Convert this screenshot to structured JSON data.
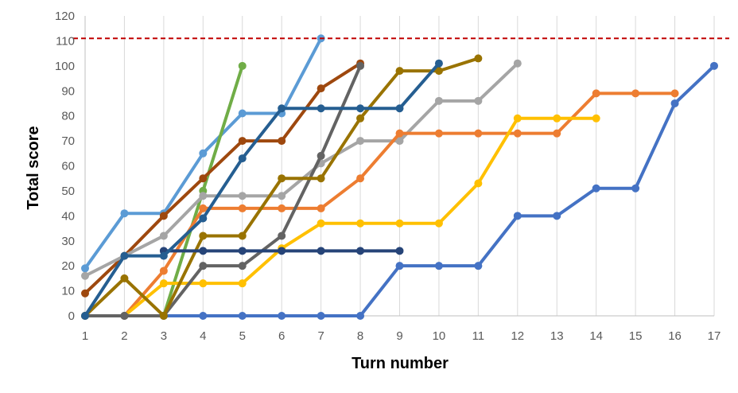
{
  "chart_data": {
    "type": "line",
    "title": "",
    "xlabel": "Turn number",
    "ylabel": "Total score",
    "xlim": [
      1,
      17
    ],
    "ylim": [
      0,
      120
    ],
    "x_ticks": [
      1,
      2,
      3,
      4,
      5,
      6,
      7,
      8,
      9,
      10,
      11,
      12,
      13,
      14,
      15,
      16,
      17
    ],
    "y_ticks": [
      0,
      10,
      20,
      30,
      40,
      50,
      60,
      70,
      80,
      90,
      100,
      110,
      120
    ],
    "grid": "vertical",
    "legend": "none",
    "reference_line": {
      "y": 111,
      "color": "#C00000",
      "style": "dashed"
    },
    "series": [
      {
        "color": "#5B9BD5",
        "x": [
          1,
          2,
          3,
          4,
          5,
          6,
          7
        ],
        "values": [
          19,
          41,
          41,
          65,
          81,
          81,
          111
        ]
      },
      {
        "color": "#70AD47",
        "x": [
          3,
          4,
          5
        ],
        "values": [
          0,
          50,
          100
        ]
      },
      {
        "color": "#9E480E",
        "x": [
          1,
          2,
          3,
          4,
          5,
          6,
          7,
          8
        ],
        "values": [
          9,
          24,
          40,
          55,
          70,
          70,
          91,
          101
        ]
      },
      {
        "color": "#A5A5A5",
        "x": [
          1,
          2,
          3,
          4,
          5,
          6,
          7,
          8,
          9,
          10,
          11,
          12
        ],
        "values": [
          16,
          24,
          32,
          48,
          48,
          48,
          61,
          70,
          70,
          86,
          86,
          101
        ]
      },
      {
        "color": "#ED7D31",
        "x": [
          2,
          3,
          4,
          5,
          6,
          7,
          8,
          9,
          10,
          11,
          12,
          13,
          14,
          15,
          16
        ],
        "values": [
          0,
          18,
          43,
          43,
          43,
          43,
          55,
          73,
          73,
          73,
          73,
          73,
          89,
          89,
          89
        ]
      },
      {
        "color": "#FFC000",
        "x": [
          2,
          3,
          4,
          5,
          6,
          7,
          8,
          9,
          10,
          11,
          12,
          13,
          14
        ],
        "values": [
          0,
          13,
          13,
          13,
          27,
          37,
          37,
          37,
          37,
          53,
          79,
          79,
          79
        ]
      },
      {
        "color": "#4472C4",
        "x": [
          1,
          2,
          3,
          4,
          5,
          6,
          7,
          8,
          9,
          10,
          11,
          12,
          13,
          14,
          15,
          16,
          17
        ],
        "values": [
          0,
          0,
          0,
          0,
          0,
          0,
          0,
          0,
          20,
          20,
          20,
          40,
          40,
          51,
          51,
          85,
          100
        ]
      },
      {
        "color": "#636363",
        "x": [
          1,
          2,
          3,
          4,
          5,
          6,
          7,
          8
        ],
        "values": [
          0,
          0,
          0,
          20,
          20,
          32,
          64,
          100
        ]
      },
      {
        "color": "#997300",
        "x": [
          1,
          2,
          3,
          4,
          5,
          6,
          7,
          8,
          9,
          10,
          11
        ],
        "values": [
          0,
          15,
          0,
          32,
          32,
          55,
          55,
          79,
          98,
          98,
          103
        ]
      },
      {
        "color": "#264478",
        "x": [
          3,
          4,
          5,
          6,
          7,
          8,
          9
        ],
        "values": [
          26,
          26,
          26,
          26,
          26,
          26,
          26
        ]
      },
      {
        "color": "#255E91",
        "x": [
          1,
          2,
          3,
          4,
          5,
          6,
          7,
          8,
          9,
          10
        ],
        "values": [
          0,
          24,
          24,
          39,
          63,
          83,
          83,
          83,
          83,
          101
        ]
      }
    ]
  }
}
